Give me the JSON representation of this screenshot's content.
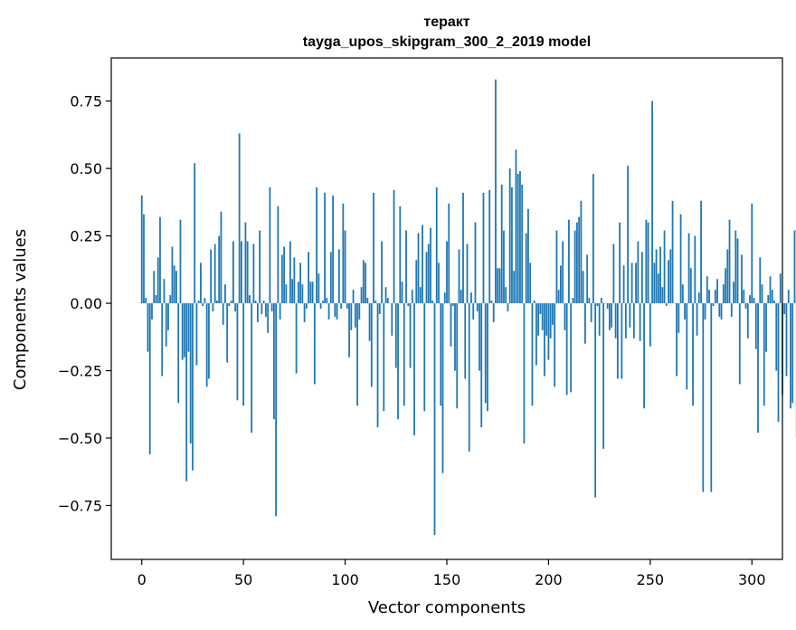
{
  "chart_data": {
    "type": "bar",
    "title": "теракт",
    "subtitle": "tayga_upos_skipgram_300_2_2019 model",
    "xlabel": "Vector components",
    "ylabel": "Components values",
    "xlim": [
      -15,
      315
    ],
    "ylim": [
      -0.95,
      0.91
    ],
    "xticks": [
      {
        "value": 0,
        "label": "0"
      },
      {
        "value": 50,
        "label": "50"
      },
      {
        "value": 100,
        "label": "100"
      },
      {
        "value": 150,
        "label": "150"
      },
      {
        "value": 200,
        "label": "200"
      },
      {
        "value": 250,
        "label": "250"
      },
      {
        "value": 300,
        "label": "300"
      }
    ],
    "yticks": [
      {
        "value": -0.75,
        "label": "−0.75"
      },
      {
        "value": -0.5,
        "label": "−0.50"
      },
      {
        "value": -0.25,
        "label": "−0.25"
      },
      {
        "value": 0.0,
        "label": "0.00"
      },
      {
        "value": 0.25,
        "label": "0.25"
      },
      {
        "value": 0.5,
        "label": "0.50"
      },
      {
        "value": 0.75,
        "label": "0.75"
      }
    ],
    "bar_color": "#1f77b4",
    "grid": false,
    "values": [
      0.4,
      0.33,
      0.02,
      -0.18,
      -0.56,
      -0.06,
      0.12,
      0.03,
      0.17,
      0.32,
      -0.27,
      0.09,
      -0.16,
      -0.1,
      0.03,
      0.21,
      0.14,
      0.12,
      -0.37,
      0.31,
      -0.21,
      -0.2,
      -0.66,
      -0.18,
      -0.52,
      -0.62,
      0.52,
      -0.23,
      0.01,
      0.15,
      -0.01,
      0.02,
      -0.31,
      -0.28,
      0.2,
      -0.03,
      0.22,
      0.01,
      0.25,
      0.34,
      -0.08,
      0.07,
      -0.22,
      -0.01,
      0.01,
      0.23,
      -0.03,
      -0.36,
      0.63,
      0.23,
      -0.38,
      0.3,
      0.23,
      0.03,
      -0.48,
      0.22,
      0.01,
      -0.07,
      0.27,
      -0.04,
      0.01,
      -0.05,
      -0.11,
      0.43,
      -0.03,
      -0.43,
      -0.79,
      0.36,
      -0.06,
      0.18,
      0.21,
      0.07,
      0.0,
      0.23,
      0.09,
      0.17,
      -0.26,
      0.08,
      0.15,
      0.07,
      -0.07,
      -0.02,
      0.19,
      0.08,
      0.08,
      -0.3,
      0.43,
      0.11,
      -0.02,
      0.01,
      0.41,
      0.02,
      -0.06,
      0.19,
      0.4,
      -0.05,
      -0.06,
      0.2,
      -0.02,
      0.37,
      0.27,
      -0.02,
      -0.2,
      -0.1,
      0.05,
      -0.09,
      -0.38,
      -0.06,
      0.06,
      0.16,
      0.15,
      0.02,
      -0.14,
      -0.31,
      0.41,
      0.01,
      -0.46,
      -0.04,
      0.23,
      -0.4,
      0.06,
      0.02,
      0.0,
      -0.12,
      0.42,
      -0.24,
      -0.43,
      0.36,
      0.08,
      -0.38,
      0.27,
      -0.01,
      -0.24,
      0.05,
      -0.49,
      0.16,
      0.26,
      0.06,
      0.29,
      -0.4,
      0.19,
      0.22,
      0.28,
      0.01,
      -0.86,
      0.43,
      0.15,
      -0.38,
      -0.63,
      0.04,
      0.23,
      0.37,
      -0.16,
      -0.01,
      -0.25,
      -0.39,
      0.2,
      0.05,
      0.41,
      -0.28,
      0.22,
      -0.55,
      0.04,
      -0.06,
      0.3,
      -0.03,
      -0.25,
      -0.46,
      0.41,
      -0.37,
      -0.4,
      0.42,
      0.01,
      -0.07,
      0.83,
      0.13,
      0.13,
      0.44,
      0.27,
      0.06,
      -0.03,
      0.5,
      0.43,
      0.12,
      0.57,
      0.48,
      0.49,
      0.44,
      -0.52,
      0.26,
      0.35,
      0.15,
      -0.38,
      0.01,
      -0.23,
      -0.12,
      -0.04,
      -0.1,
      -0.27,
      -0.12,
      -0.21,
      -0.13,
      -0.08,
      -0.31,
      0.27,
      0.05,
      0.14,
      0.23,
      -0.1,
      -0.34,
      0.31,
      -0.33,
      0.02,
      0.27,
      0.3,
      0.32,
      0.38,
      0.12,
      -0.15,
      0.18,
      0.02,
      -0.07,
      0.48,
      -0.72,
      -0.01,
      -0.12,
      0.02,
      -0.54,
      0.0,
      -0.02,
      -0.1,
      -0.09,
      0.22,
      -0.13,
      -0.28,
      0.3,
      -0.28,
      0.14,
      -0.13,
      0.51,
      -0.09,
      0.15,
      -0.13,
      0.15,
      0.23,
      -0.14,
      0.19,
      -0.39,
      0.31,
      0.3,
      -0.16,
      0.75,
      0.15,
      0.2,
      0.11,
      0.21,
      0.06,
      0.27,
      -0.01,
      0.16,
      0.2,
      0.38,
      0.0,
      -0.27,
      -0.11,
      0.33,
      0.07,
      -0.06,
      -0.32,
      0.26,
      0.13,
      -0.38,
      0.25,
      -0.12,
      0.04,
      0.38,
      -0.7,
      -0.06,
      0.1,
      0.05,
      -0.7,
      -0.01,
      0.05,
      0.09,
      -0.05,
      -0.06,
      0.07,
      0.13,
      0.2,
      0.31,
      -0.05,
      0.08,
      0.27,
      0.24,
      -0.3,
      0.18,
      0.05,
      -0.02,
      -0.13,
      0.03,
      0.37,
      0.02,
      -0.17,
      -0.48,
      0.17,
      0.07,
      -0.38,
      -0.18,
      0.03,
      0.1,
      0.05,
      0.01,
      -0.25,
      -0.44,
      0.11,
      -0.34,
      -0.04,
      -0.27,
      0.05,
      -0.39,
      -0.37,
      0.27,
      -0.5
    ]
  }
}
